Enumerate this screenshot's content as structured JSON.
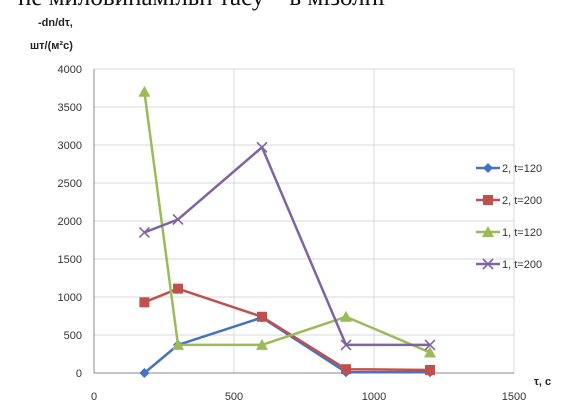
{
  "page": {
    "doc_text": "не миловинамільн тасу – в мізолні"
  },
  "chart_data": {
    "type": "line",
    "title": "",
    "ylabel": [
      "-dn/dτ,",
      "шт/(м²с)"
    ],
    "xlabel": "τ, c",
    "xlim": [
      0,
      1500
    ],
    "ylim": [
      0,
      4000
    ],
    "xticks": [
      0,
      500,
      1000,
      1500
    ],
    "yticks": [
      0,
      500,
      1000,
      1500,
      2000,
      2500,
      3000,
      3500,
      4000
    ],
    "grid": true,
    "legend_position": "right",
    "series": [
      {
        "name": "2, t=120",
        "color": "#4472C4",
        "marker": "diamond",
        "x": [
          180,
          300,
          600,
          900,
          1200
        ],
        "y": [
          0,
          370,
          730,
          10,
          10
        ]
      },
      {
        "name": "2, t=200",
        "color": "#C0504D",
        "marker": "square",
        "x": [
          180,
          300,
          600,
          900,
          1200
        ],
        "y": [
          930,
          1110,
          740,
          50,
          40
        ]
      },
      {
        "name": "1, t=120",
        "color": "#9BBB59",
        "marker": "triangle",
        "x": [
          180,
          300,
          600,
          900,
          1200
        ],
        "y": [
          3700,
          370,
          370,
          740,
          270
        ]
      },
      {
        "name": "1, t=200",
        "color": "#8064A2",
        "marker": "x",
        "x": [
          180,
          300,
          600,
          900,
          1200
        ],
        "y": [
          1850,
          2020,
          2970,
          370,
          370
        ]
      }
    ]
  }
}
